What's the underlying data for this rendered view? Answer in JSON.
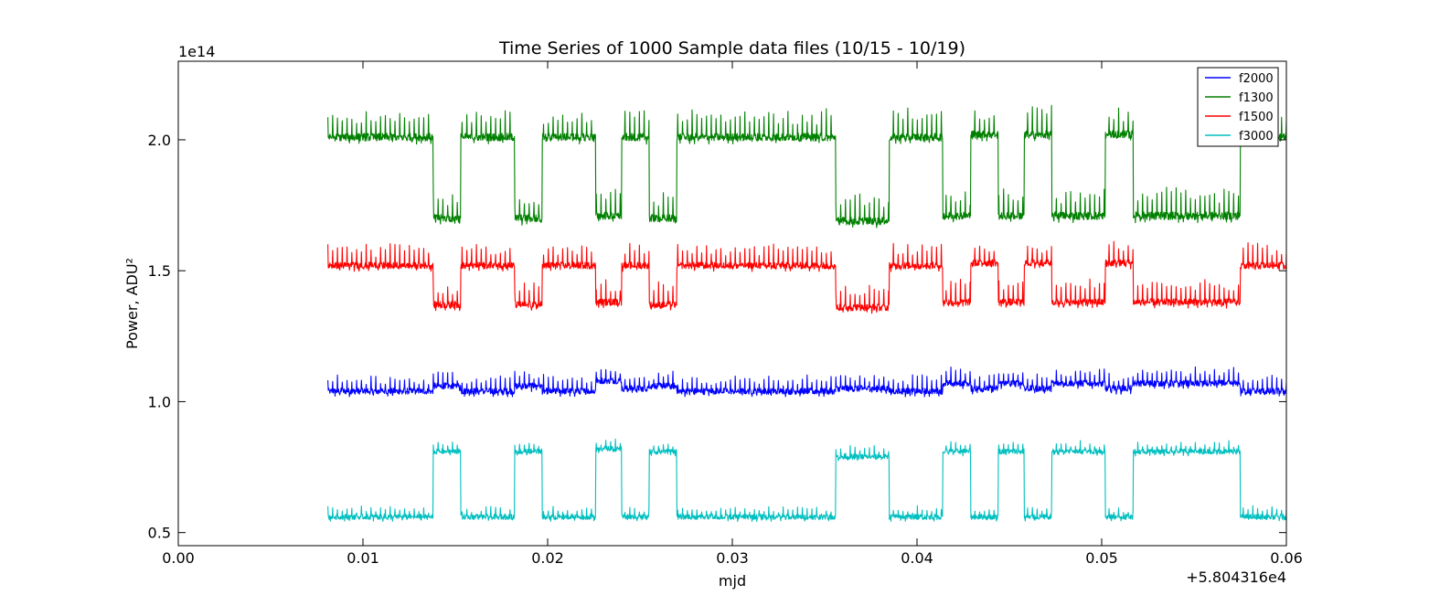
{
  "chart_data": {
    "type": "line",
    "title": "Time Series of 1000 Sample data files (10/15 - 10/19)",
    "xlabel": "mjd",
    "ylabel": "Power, ADU²",
    "x_offset_label": "+5.804316e4",
    "y_multiplier_label": "1e14",
    "xlim": [
      0.0,
      0.06
    ],
    "ylim": [
      0.45,
      2.3
    ],
    "x_tick_labels": [
      "0.00",
      "0.01",
      "0.02",
      "0.03",
      "0.04",
      "0.05",
      "0.06"
    ],
    "x_ticks": [
      0.0,
      0.01,
      0.02,
      0.03,
      0.04,
      0.05,
      0.06
    ],
    "y_tick_labels": [
      "0.5",
      "1.0",
      "1.5",
      "2.0"
    ],
    "y_ticks": [
      0.5,
      1.0,
      1.5,
      2.0
    ],
    "legend_position": "top-right",
    "segment_boundaries": [
      0.0081,
      0.0138,
      0.0153,
      0.0182,
      0.0197,
      0.0226,
      0.024,
      0.0255,
      0.027,
      0.0356,
      0.0385,
      0.0414,
      0.0429,
      0.0444,
      0.0458,
      0.0473,
      0.0502,
      0.0517,
      0.0575,
      0.06
    ],
    "series": [
      {
        "name": "f2000",
        "color": "#0000ff",
        "levels": [
          1.04,
          1.06,
          1.04,
          1.06,
          1.04,
          1.08,
          1.05,
          1.06,
          1.04,
          1.05,
          1.04,
          1.07,
          1.05,
          1.07,
          1.05,
          1.07,
          1.05,
          1.07,
          1.04
        ],
        "noise": 0.012,
        "spike": 0.055
      },
      {
        "name": "f1300",
        "color": "#008000",
        "levels": [
          2.01,
          1.7,
          2.01,
          1.7,
          2.01,
          1.71,
          2.01,
          1.7,
          2.01,
          1.69,
          2.01,
          1.71,
          2.02,
          1.71,
          2.02,
          1.71,
          2.02,
          1.71,
          2.01
        ],
        "noise": 0.015,
        "spike": 0.1
      },
      {
        "name": "f1500",
        "color": "#ff0000",
        "levels": [
          1.52,
          1.37,
          1.52,
          1.37,
          1.52,
          1.38,
          1.52,
          1.37,
          1.52,
          1.36,
          1.52,
          1.38,
          1.53,
          1.38,
          1.53,
          1.38,
          1.53,
          1.38,
          1.52
        ],
        "noise": 0.013,
        "spike": 0.08
      },
      {
        "name": "f3000",
        "color": "#00bfbf",
        "levels": [
          0.56,
          0.81,
          0.56,
          0.81,
          0.56,
          0.82,
          0.56,
          0.81,
          0.56,
          0.79,
          0.56,
          0.81,
          0.56,
          0.81,
          0.56,
          0.81,
          0.56,
          0.81,
          0.56
        ],
        "noise": 0.01,
        "spike": 0.035
      }
    ]
  }
}
